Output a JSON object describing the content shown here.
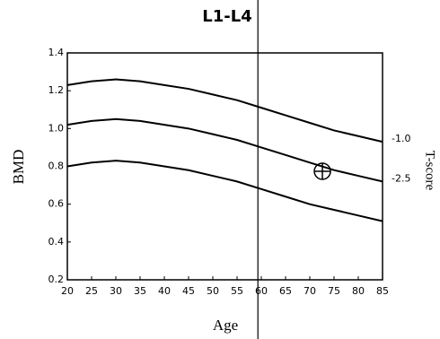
{
  "chart_data": {
    "type": "line",
    "title": "L1-L4",
    "xlabel": "Age",
    "ylabel": "BMD",
    "y2label": "T-score",
    "x": [
      20,
      25,
      30,
      35,
      40,
      45,
      50,
      55,
      60,
      65,
      70,
      75,
      80,
      85
    ],
    "series": [
      {
        "name": "-1.0",
        "color": "#000000",
        "values": [
          1.23,
          1.25,
          1.26,
          1.25,
          1.23,
          1.21,
          1.18,
          1.15,
          1.11,
          1.07,
          1.03,
          0.99,
          0.96,
          0.93
        ]
      },
      {
        "name": "-2.5",
        "color": "#000000",
        "values": [
          1.02,
          1.04,
          1.05,
          1.04,
          1.02,
          1.0,
          0.97,
          0.94,
          0.9,
          0.86,
          0.82,
          0.78,
          0.75,
          0.72
        ]
      },
      {
        "color": "#000000",
        "values": [
          0.8,
          0.82,
          0.83,
          0.82,
          0.8,
          0.78,
          0.75,
          0.72,
          0.68,
          0.64,
          0.6,
          0.57,
          0.54,
          0.51
        ]
      }
    ],
    "reference_x": 59.3,
    "point": {
      "x": 72.6,
      "y": 0.774
    },
    "xlim": [
      20,
      85
    ],
    "xticks": [
      20,
      25,
      30,
      35,
      40,
      45,
      50,
      55,
      60,
      65,
      70,
      75,
      80,
      85
    ],
    "ylim": [
      0.2,
      1.4
    ],
    "yticks": [
      0.2,
      0.4,
      0.6,
      0.8,
      {
        "value": 1.0,
        "label": "1.0"
      },
      1.2,
      1.4
    ]
  }
}
